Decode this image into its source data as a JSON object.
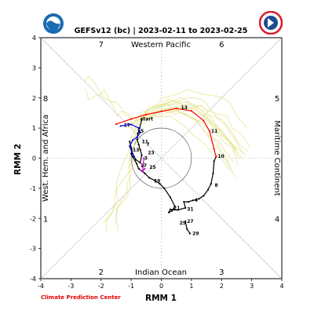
{
  "footer": "Climate Prediction Center",
  "logos": {
    "left": "noaa-logo",
    "right": "nws-logo"
  },
  "chart_data": {
    "type": "line",
    "title": "GEFSv12 (bc) | 2023-02-11 to 2023-02-25",
    "xlabel": "RMM 1",
    "ylabel": "RMM 2",
    "xlim": [
      -4,
      4
    ],
    "ylim": [
      -4,
      4
    ],
    "ticks": [
      -4,
      -3,
      -2,
      -1,
      0,
      1,
      2,
      3,
      4
    ],
    "tick_labels": [
      "-4",
      "-3",
      "-2",
      "-1",
      "0",
      "1",
      "2",
      "3",
      "4"
    ],
    "grid": "diagonals and axis crosses, unit circle",
    "region_labels": [
      {
        "text": "Western Pacific",
        "side": "top"
      },
      {
        "text": "Indian Ocean",
        "side": "bottom"
      },
      {
        "text": "West. Hem. and Africa",
        "side": "left"
      },
      {
        "text": "Maritime Continent",
        "side": "right"
      }
    ],
    "phase_labels": [
      "7",
      "6",
      "8",
      "5",
      "1",
      "4",
      "2",
      "3"
    ],
    "colors": {
      "observed": "#000000",
      "forecast_mean": "#ff0000",
      "member": "#e3e38a",
      "purple": "#cc00cc",
      "blue": "#0000ff",
      "footer": "#e00000"
    },
    "series": [
      {
        "color": "#000000",
        "points": [
          [
            -1.0,
            0.15
          ],
          [
            -0.95,
            0.05
          ],
          [
            -0.82,
            -0.18
          ],
          [
            -0.75,
            -0.35
          ],
          [
            -0.55,
            -0.5
          ],
          [
            -0.4,
            -0.65
          ],
          [
            -0.2,
            -0.75
          ],
          [
            -0.05,
            -0.85
          ],
          [
            0.1,
            -1.0
          ],
          [
            0.3,
            -1.3
          ],
          [
            0.45,
            -1.6
          ],
          [
            0.35,
            -1.75
          ],
          [
            0.25,
            -1.8
          ],
          [
            0.3,
            -1.7
          ],
          [
            0.55,
            -1.72
          ],
          [
            0.8,
            -1.65
          ],
          [
            0.75,
            -1.45
          ],
          [
            0.9,
            -1.45
          ],
          [
            1.05,
            -1.4
          ],
          [
            1.25,
            -1.35
          ],
          [
            1.4,
            -1.25
          ],
          [
            1.55,
            -1.05
          ],
          [
            1.65,
            -0.85
          ],
          [
            1.72,
            -0.5
          ],
          [
            1.75,
            -0.1
          ],
          [
            1.82,
            0.05
          ]
        ],
        "labels": [
          {
            "text": "8",
            "x": 1.72,
            "y": -0.9
          },
          {
            "text": "4",
            "x": 1.05,
            "y": -1.4
          },
          {
            "text": "31",
            "x": 0.8,
            "y": -1.7
          },
          {
            "text": "21",
            "x": 0.35,
            "y": -1.65
          },
          {
            "text": "27",
            "x": 0.8,
            "y": -2.1
          },
          {
            "text": "29",
            "x": 0.55,
            "y": -2.15
          },
          {
            "text": "19",
            "x": -0.3,
            "y": -0.75
          }
        ]
      },
      {
        "color": "#000000",
        "points": [
          [
            0.8,
            -2.1
          ],
          [
            0.85,
            -2.35
          ],
          [
            0.95,
            -2.5
          ]
        ],
        "labels": [
          {
            "text": "29",
            "x": 0.98,
            "y": -2.5
          }
        ]
      },
      {
        "color": "#000000",
        "points": [
          [
            -1.05,
            0.55
          ],
          [
            -1.0,
            0.35
          ],
          [
            -0.95,
            0.15
          ],
          [
            -0.85,
            -0.05
          ],
          [
            -0.7,
            -0.15
          ],
          [
            -0.65,
            0.1
          ],
          [
            -0.7,
            0.28
          ],
          [
            -0.75,
            0.45
          ],
          [
            -0.8,
            0.62
          ],
          [
            -0.78,
            0.82
          ],
          [
            -0.72,
            1.0
          ],
          [
            -0.65,
            1.28
          ]
        ],
        "labels": [
          {
            "text": "15",
            "x": -0.85,
            "y": 0.9
          },
          {
            "text": "11",
            "x": -0.7,
            "y": 0.55
          },
          {
            "text": "7",
            "x": -0.55,
            "y": 0.45
          },
          {
            "text": "23",
            "x": -0.5,
            "y": 0.18
          },
          {
            "text": "3",
            "x": -0.62,
            "y": 0.0
          },
          {
            "text": "13",
            "x": -1.0,
            "y": 0.28
          },
          {
            "text": "17",
            "x": -0.75,
            "y": -0.25
          },
          {
            "text": "25",
            "x": -0.45,
            "y": -0.3
          }
        ]
      },
      {
        "color": "#0000ff",
        "points": [
          [
            -1.35,
            1.07
          ],
          [
            -1.0,
            1.12
          ],
          [
            -0.75,
            1.0
          ],
          [
            -0.7,
            0.85
          ],
          [
            -0.8,
            0.7
          ],
          [
            -0.95,
            0.6
          ],
          [
            -1.05,
            0.4
          ],
          [
            -0.98,
            0.2
          ],
          [
            -0.9,
            0.05
          ]
        ],
        "labels": [
          {
            "text": "17",
            "x": -1.3,
            "y": 1.1
          }
        ]
      },
      {
        "color": "#cc00cc",
        "points": [
          [
            -0.58,
            0.0
          ],
          [
            -0.6,
            -0.25
          ],
          [
            -0.62,
            -0.45
          ],
          [
            -0.55,
            -0.35
          ]
        ],
        "labels": []
      },
      {
        "color": "#ff0000",
        "points": [
          [
            -1.5,
            1.13
          ],
          [
            -1.0,
            1.3
          ],
          [
            -0.5,
            1.45
          ],
          [
            0.0,
            1.55
          ],
          [
            0.5,
            1.65
          ],
          [
            1.0,
            1.57
          ],
          [
            1.4,
            1.25
          ],
          [
            1.6,
            0.9
          ],
          [
            1.75,
            0.3
          ],
          [
            1.82,
            0.05
          ]
        ],
        "labels": [
          {
            "text": "13",
            "x": 0.6,
            "y": 1.68
          },
          {
            "text": "11",
            "x": 1.6,
            "y": 0.9
          },
          {
            "text": "10",
            "x": 1.82,
            "y": 0.07
          },
          {
            "text": "start",
            "x": -0.75,
            "y": 1.3
          }
        ]
      }
    ],
    "member_series_count": 20
  }
}
